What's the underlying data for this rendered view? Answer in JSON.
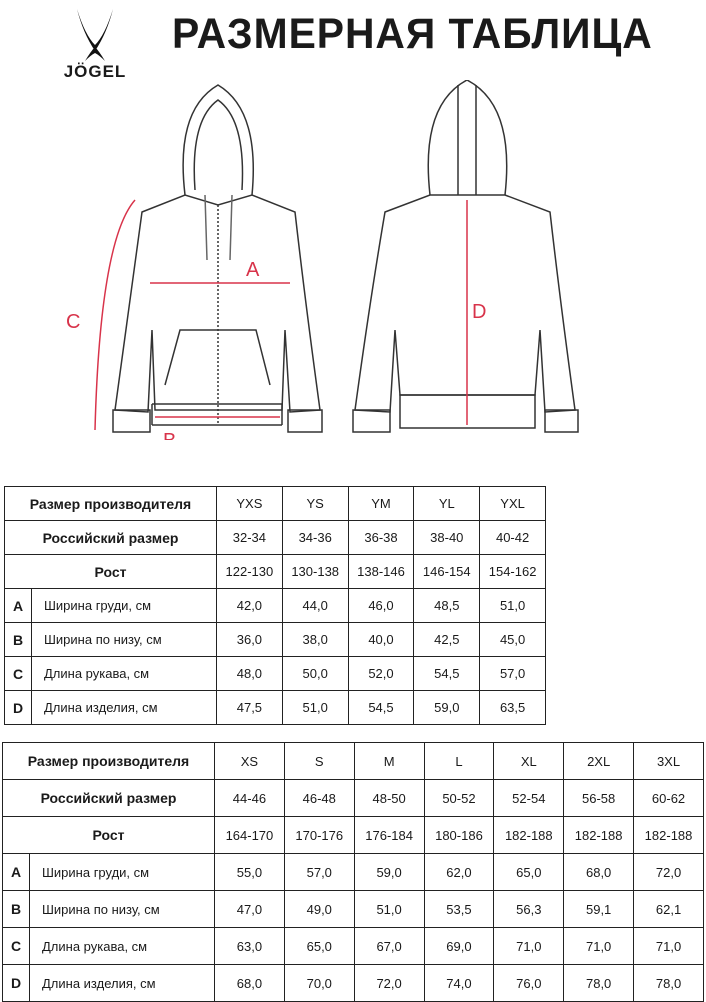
{
  "title": "РАЗМЕРНАЯ ТАБЛИЦА",
  "logo": {
    "text": "JÖGEL"
  },
  "diagram": {
    "labels": {
      "a": "A",
      "b": "B",
      "c": "C",
      "d": "D"
    },
    "accent": "#d8334a"
  },
  "tables": [
    {
      "header_label": "Размер производителя",
      "sizes": [
        "YXS",
        "YS",
        "YM",
        "YL",
        "YXL"
      ],
      "ru_label": "Российский размер",
      "ru": [
        "32-34",
        "34-36",
        "36-38",
        "38-40",
        "40-42"
      ],
      "height_label": "Рост",
      "height": [
        "122-130",
        "130-138",
        "138-146",
        "146-154",
        "154-162"
      ],
      "rows": [
        {
          "letter": "A",
          "name": "Ширина груди, см",
          "values": [
            "42,0",
            "44,0",
            "46,0",
            "48,5",
            "51,0"
          ]
        },
        {
          "letter": "B",
          "name": "Ширина по низу, см",
          "values": [
            "36,0",
            "38,0",
            "40,0",
            "42,5",
            "45,0"
          ]
        },
        {
          "letter": "C",
          "name": "Длина рукава, см",
          "values": [
            "48,0",
            "50,0",
            "52,0",
            "54,5",
            "57,0"
          ]
        },
        {
          "letter": "D",
          "name": "Длина изделия, см",
          "values": [
            "47,5",
            "51,0",
            "54,5",
            "59,0",
            "63,5"
          ]
        }
      ]
    },
    {
      "header_label": "Размер производителя",
      "sizes": [
        "XS",
        "S",
        "M",
        "L",
        "XL",
        "2XL",
        "3XL"
      ],
      "ru_label": "Российский размер",
      "ru": [
        "44-46",
        "46-48",
        "48-50",
        "50-52",
        "52-54",
        "56-58",
        "60-62"
      ],
      "height_label": "Рост",
      "height": [
        "164-170",
        "170-176",
        "176-184",
        "180-186",
        "182-188",
        "182-188",
        "182-188"
      ],
      "rows": [
        {
          "letter": "A",
          "name": "Ширина груди, см",
          "values": [
            "55,0",
            "57,0",
            "59,0",
            "62,0",
            "65,0",
            "68,0",
            "72,0"
          ]
        },
        {
          "letter": "B",
          "name": "Ширина по низу, см",
          "values": [
            "47,0",
            "49,0",
            "51,0",
            "53,5",
            "56,3",
            "59,1",
            "62,1"
          ]
        },
        {
          "letter": "C",
          "name": "Длина рукава, см",
          "values": [
            "63,0",
            "65,0",
            "67,0",
            "69,0",
            "71,0",
            "71,0",
            "71,0"
          ]
        },
        {
          "letter": "D",
          "name": "Длина изделия, см",
          "values": [
            "68,0",
            "70,0",
            "72,0",
            "74,0",
            "76,0",
            "78,0",
            "78,0"
          ]
        }
      ]
    }
  ]
}
